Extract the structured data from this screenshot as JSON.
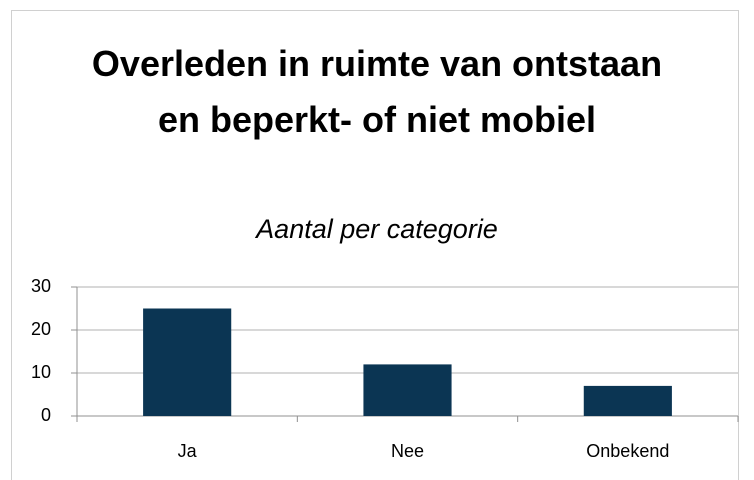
{
  "chart_data": {
    "type": "bar",
    "title": "Overleden in ruimte van ontstaan en beperkt- of niet mobiel",
    "subtitle": "Aantal per categorie",
    "categories": [
      "Ja",
      "Nee",
      "Onbekend"
    ],
    "values": [
      25,
      12,
      7
    ],
    "color": "#0b3553",
    "ylim": [
      0,
      30
    ],
    "yticks": [
      0,
      10,
      20,
      30
    ],
    "grid": true
  }
}
